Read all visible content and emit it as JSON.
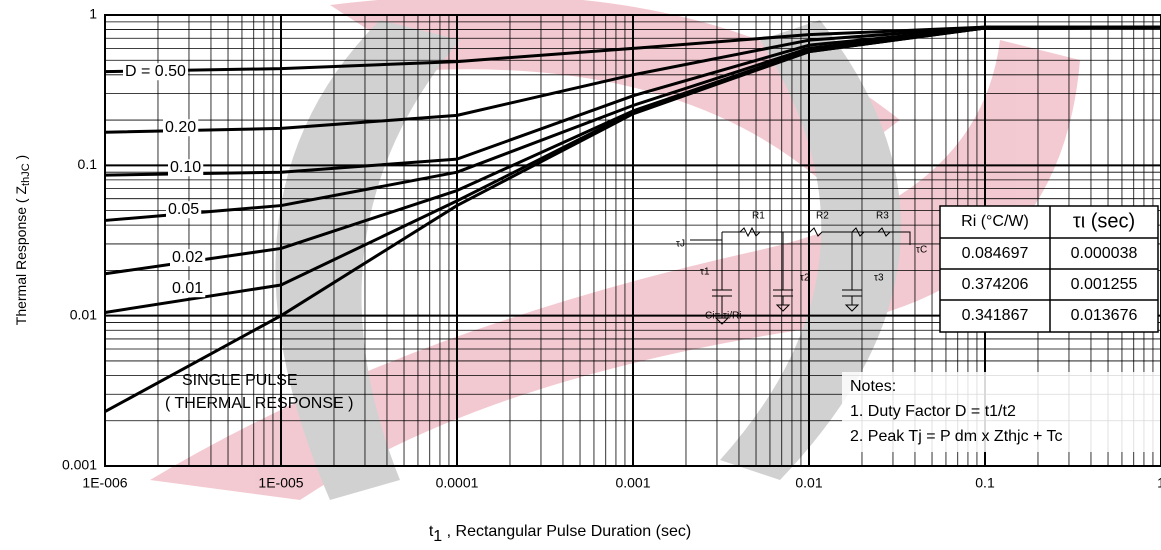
{
  "chart_data": {
    "type": "line",
    "log_x": true,
    "log_y": true,
    "grid": true,
    "x_label": {
      "main": "t",
      "sub": "1",
      "rest": " , Rectangular Pulse Duration (sec)"
    },
    "y_label": {
      "main": "Thermal Response ( Z",
      "sub": "thJC",
      "rest": " )"
    },
    "xlim": [
      1e-06,
      1
    ],
    "ylim": [
      0.001,
      1
    ],
    "xticks": [
      {
        "value": 1e-06,
        "label": "1E-006"
      },
      {
        "value": 1e-05,
        "label": "1E-005"
      },
      0.0001,
      0.001,
      0.01,
      0.1,
      1
    ],
    "yticks": [
      0.001,
      0.01,
      0.1,
      1
    ],
    "x": [
      1e-06,
      1e-05,
      0.0001,
      0.001,
      0.01,
      0.1,
      1
    ],
    "series": [
      {
        "name": "D = 0.50",
        "color": "#000000",
        "values": [
          0.42,
          0.44,
          0.49,
          0.6,
          0.74,
          0.83,
          0.83
        ]
      },
      {
        "name": "0.20",
        "color": "#000000",
        "values": [
          0.166,
          0.176,
          0.215,
          0.4,
          0.68,
          0.83,
          0.83
        ]
      },
      {
        "name": "0.10",
        "color": "#000000",
        "values": [
          0.086,
          0.09,
          0.11,
          0.29,
          0.63,
          0.82,
          0.83
        ]
      },
      {
        "name": "0.05",
        "color": "#000000",
        "values": [
          0.043,
          0.054,
          0.09,
          0.25,
          0.6,
          0.82,
          0.83
        ]
      },
      {
        "name": "0.02",
        "color": "#000000",
        "values": [
          0.019,
          0.028,
          0.068,
          0.23,
          0.58,
          0.82,
          0.83
        ]
      },
      {
        "name": "0.01",
        "color": "#000000",
        "values": [
          0.0105,
          0.016,
          0.058,
          0.225,
          0.57,
          0.82,
          0.83
        ]
      },
      {
        "name": "SINGLE PULSE",
        "color": "#000000",
        "values": [
          0.0023,
          0.01,
          0.054,
          0.22,
          0.57,
          0.82,
          0.83
        ]
      }
    ],
    "single_pulse_note": "( THERMAL RESPONSE )",
    "notes": [
      "Notes:",
      "1. Duty Factor D = t1/t2",
      "2. Peak Tj = P dm x Zthjc + Tc"
    ],
    "circuit": {
      "tj": "τJ",
      "tc": "τC",
      "r": [
        "R1",
        "R2",
        "R3"
      ],
      "tau": [
        "τ1",
        "τ2",
        "τ3"
      ],
      "ci": "Ci= τi/Ri"
    },
    "table": {
      "header": [
        "Ri (°C/W)",
        "τι (sec)"
      ],
      "rows": [
        [
          "0.084697",
          "0.000038"
        ],
        [
          "0.374206",
          "0.001255"
        ],
        [
          "0.341867",
          "0.013676"
        ]
      ]
    }
  }
}
